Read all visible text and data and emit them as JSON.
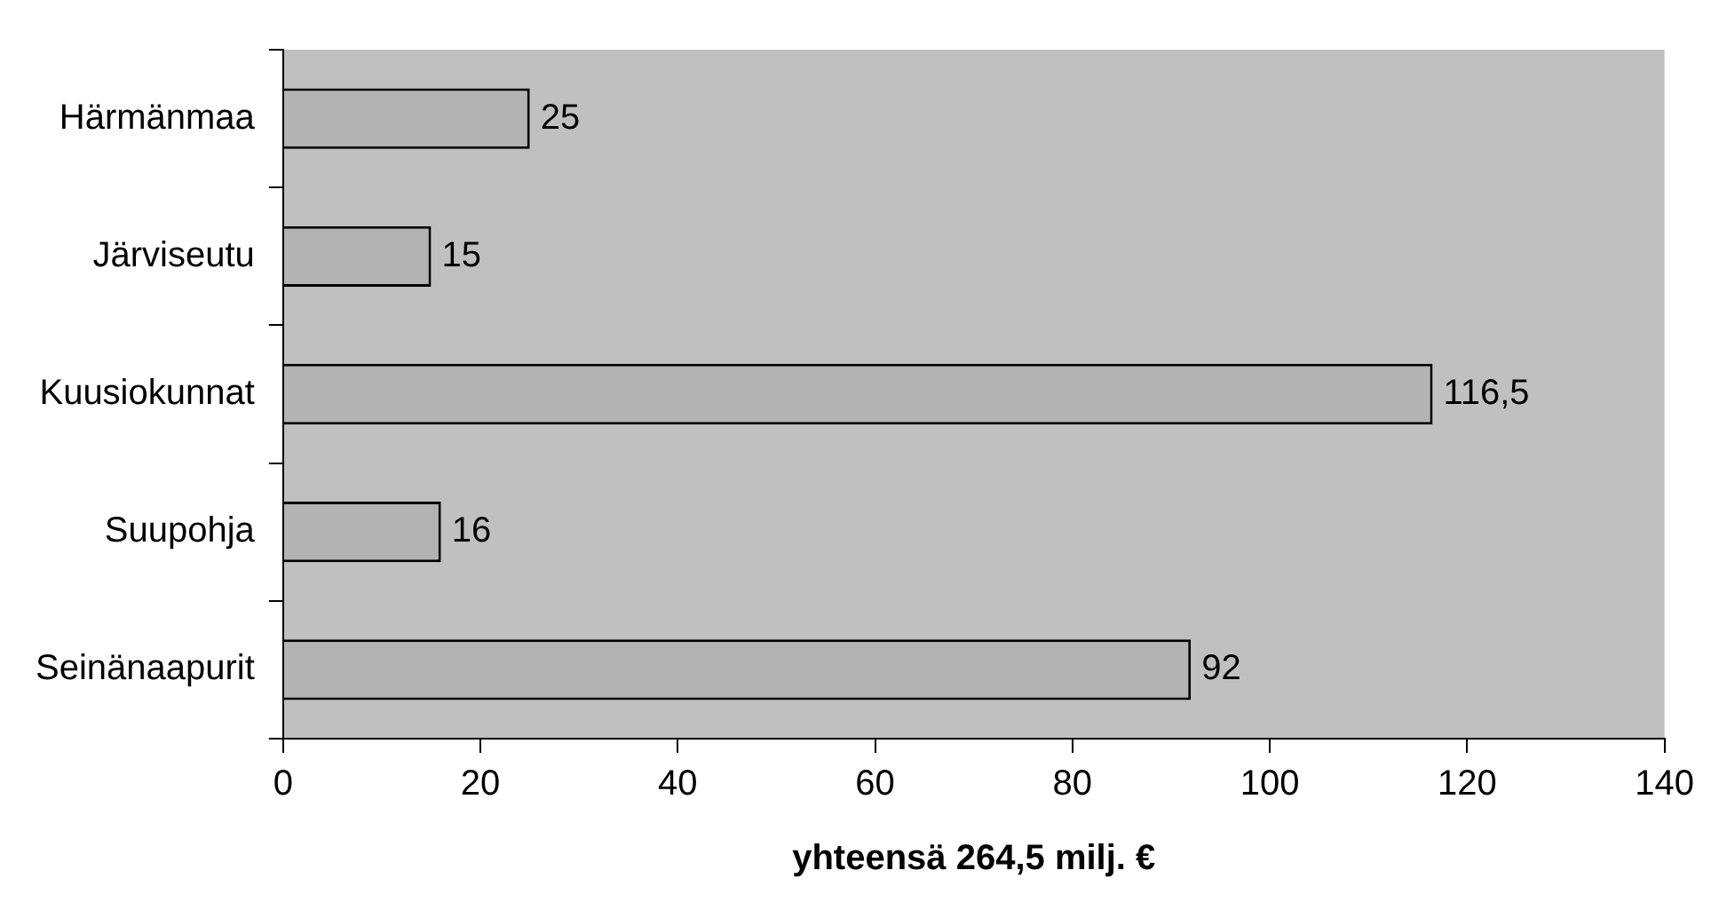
{
  "chart_data": {
    "type": "bar",
    "orientation": "horizontal",
    "categories": [
      "Härmänmaa",
      "Järviseutu",
      "Kuusiokunnat",
      "Suupohja",
      "Seinänaapurit"
    ],
    "values": [
      25,
      15,
      116.5,
      16,
      92
    ],
    "color": "#b3b3b3",
    "value_labels": [
      "25",
      "15",
      "116,5",
      "16",
      "92"
    ],
    "xlim": [
      0,
      140
    ],
    "xticks": [
      0,
      20,
      40,
      60,
      80,
      100,
      120,
      140
    ],
    "xlabel": "yhteensä 264,5 milj. €",
    "grid": false,
    "legend": false
  }
}
